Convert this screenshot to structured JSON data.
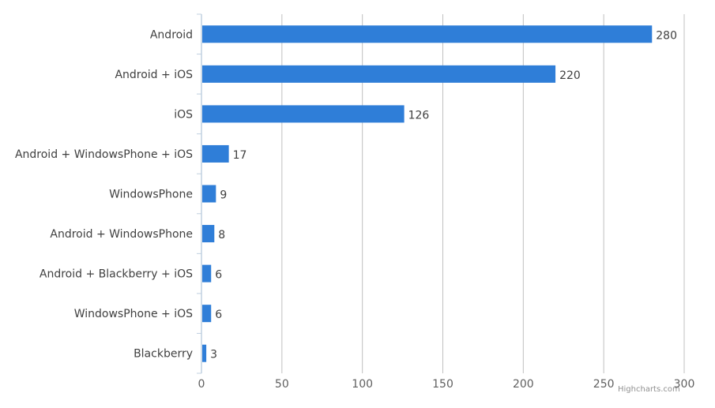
{
  "chart_data": {
    "type": "bar",
    "orientation": "horizontal",
    "categories": [
      "Android",
      "Android + iOS",
      "iOS",
      "Android + WindowsPhone + iOS",
      "WindowsPhone",
      "Android + WindowsPhone",
      "Android + Blackberry + iOS",
      "WindowsPhone + iOS",
      "Blackberry"
    ],
    "values": [
      280,
      220,
      126,
      17,
      9,
      8,
      6,
      6,
      3
    ],
    "xlim": [
      0,
      300
    ],
    "ticks": [
      "0",
      "50",
      "100",
      "150",
      "200",
      "250",
      "300"
    ],
    "grid": true,
    "data_labels": true,
    "bar_color": "#2f7ed8"
  },
  "credit": "Highcharts.com"
}
